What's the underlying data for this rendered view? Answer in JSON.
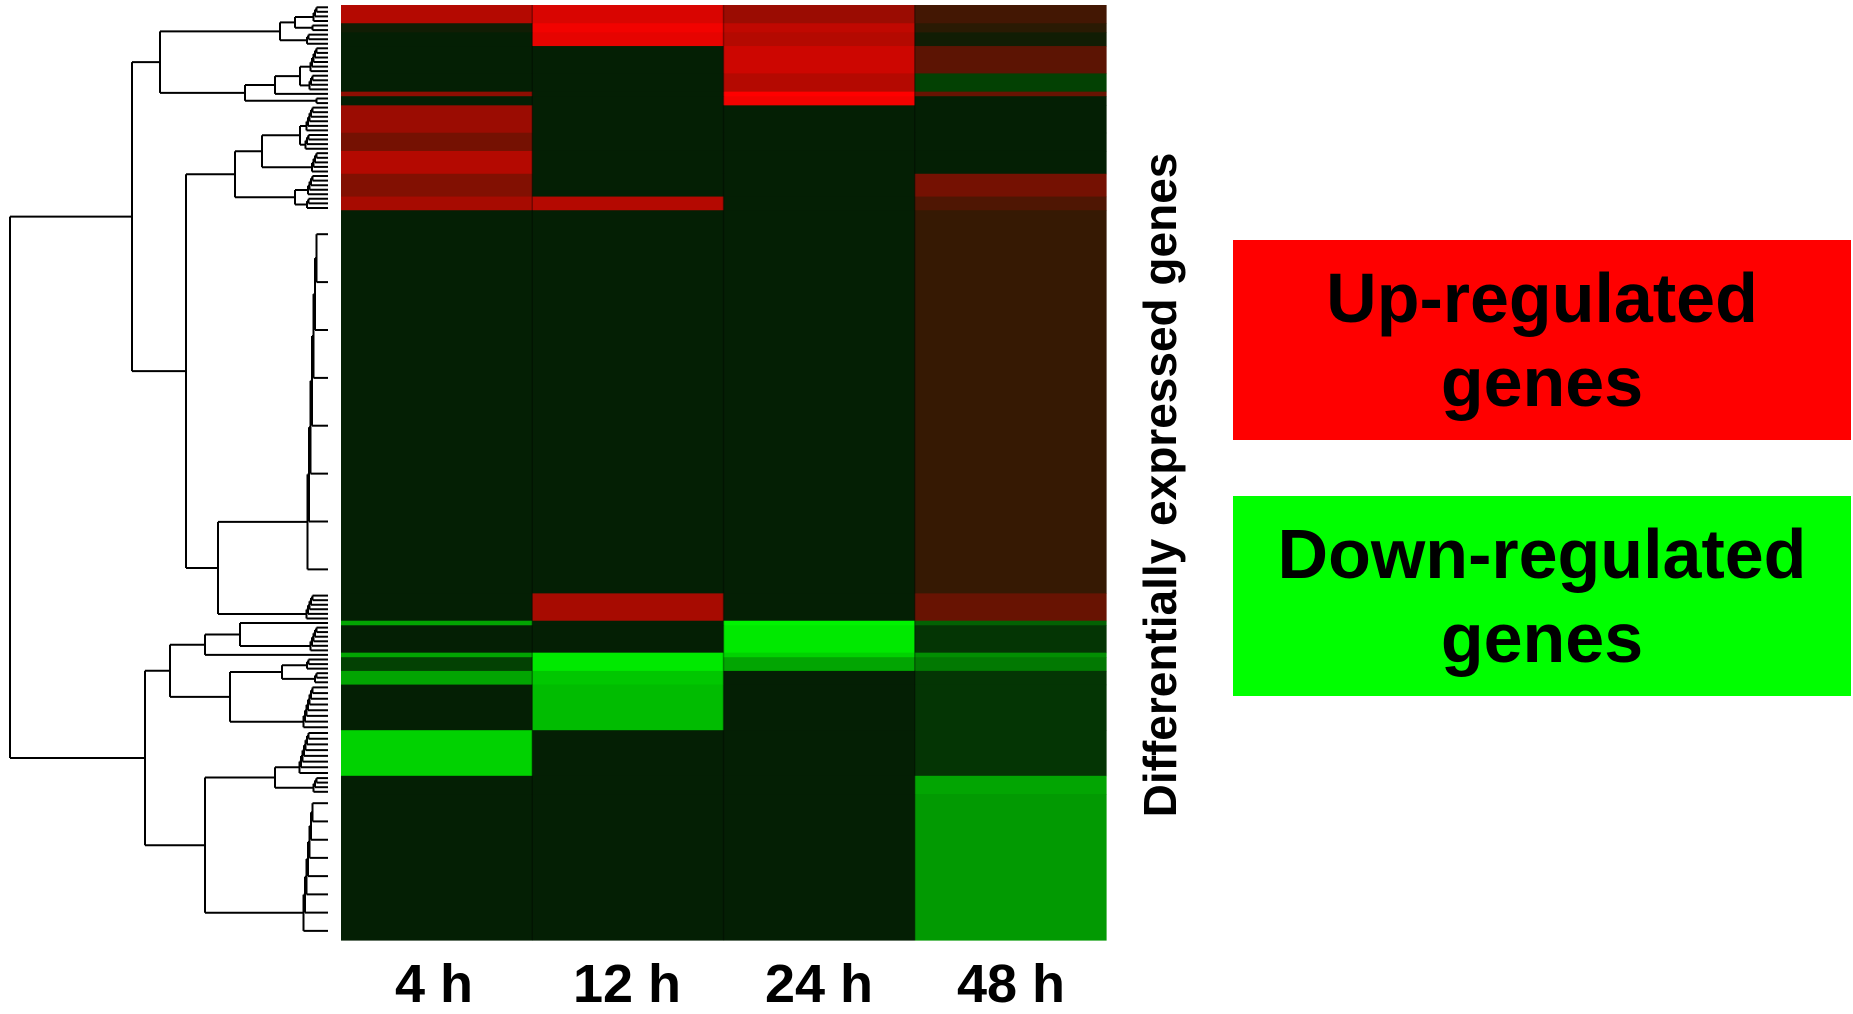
{
  "chart_data": {
    "type": "heatmap",
    "title": "",
    "xlabel": "",
    "ylabel": "Differentially expressed genes",
    "columns": [
      "4 h",
      "12 h",
      "24 h",
      "48 h"
    ],
    "row_dendrogram": true,
    "color_scale": {
      "up": "#ff0000",
      "neutral": "#041f04",
      "down": "#00ff00"
    },
    "value_range": [
      -1,
      1
    ],
    "row_groups": [
      {
        "rows": 4,
        "values": [
          0.7,
          0.85,
          0.6,
          0.25
        ]
      },
      {
        "rows": 2,
        "values": [
          0.05,
          0.95,
          0.75,
          0.15
        ]
      },
      {
        "rows": 3,
        "values": [
          0.0,
          0.9,
          0.7,
          0.05
        ]
      },
      {
        "rows": 6,
        "values": [
          0.0,
          0.0,
          0.8,
          0.35
        ]
      },
      {
        "rows": 4,
        "values": [
          0.0,
          0.0,
          0.7,
          -0.15
        ]
      },
      {
        "rows": 1,
        "values": [
          0.55,
          0.0,
          1.0,
          0.4
        ]
      },
      {
        "rows": 2,
        "values": [
          0.0,
          0.0,
          0.95,
          0.0
        ]
      },
      {
        "rows": 6,
        "values": [
          0.6,
          0.0,
          0.0,
          0.0
        ]
      },
      {
        "rows": 4,
        "values": [
          0.45,
          0.0,
          0.0,
          0.0
        ]
      },
      {
        "rows": 5,
        "values": [
          0.7,
          0.0,
          0.0,
          0.0
        ]
      },
      {
        "rows": 5,
        "values": [
          0.5,
          0.0,
          0.0,
          0.45
        ]
      },
      {
        "rows": 3,
        "values": [
          0.65,
          0.7,
          0.0,
          0.3
        ]
      },
      {
        "rows": 84,
        "values": [
          0.0,
          0.0,
          0.0,
          0.2
        ]
      },
      {
        "rows": 6,
        "values": [
          0.0,
          0.65,
          0.0,
          0.4
        ]
      },
      {
        "rows": 1,
        "values": [
          -0.6,
          0.0,
          -0.95,
          -0.3
        ]
      },
      {
        "rows": 6,
        "values": [
          0.0,
          0.0,
          -0.9,
          -0.1
        ]
      },
      {
        "rows": 1,
        "values": [
          -0.6,
          -0.9,
          -0.8,
          -0.5
        ]
      },
      {
        "rows": 3,
        "values": [
          -0.15,
          -0.9,
          -0.6,
          -0.4
        ]
      },
      {
        "rows": 3,
        "values": [
          -0.6,
          -0.75,
          0.0,
          -0.1
        ]
      },
      {
        "rows": 10,
        "values": [
          0.0,
          -0.7,
          0.0,
          -0.1
        ]
      },
      {
        "rows": 10,
        "values": [
          -0.8,
          0.0,
          0.0,
          -0.1
        ]
      },
      {
        "rows": 4,
        "values": [
          0.0,
          0.0,
          0.0,
          -0.6
        ]
      },
      {
        "rows": 32,
        "values": [
          0.0,
          0.0,
          0.0,
          -0.55
        ]
      }
    ]
  },
  "legend": {
    "up": {
      "line1": "Up-regulated",
      "line2": "genes",
      "color": "#ff0000"
    },
    "down": {
      "line1": "Down-regulated",
      "line2": "genes",
      "color": "#00ff00"
    }
  }
}
